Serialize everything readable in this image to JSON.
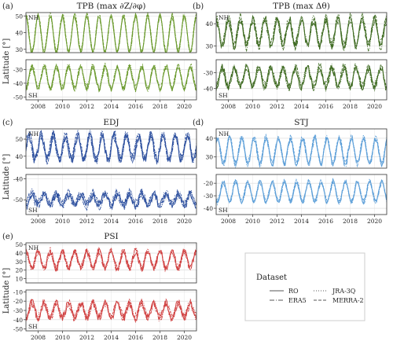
{
  "figure": {
    "ylabel": "Latitude [°]",
    "x_ticks": [
      "2008",
      "2010",
      "2012",
      "2014",
      "2016",
      "2018",
      "2020"
    ],
    "legend": {
      "title": "Dataset",
      "entries": [
        {
          "name": "RO",
          "style": "solid"
        },
        {
          "name": "JRA-3Q",
          "style": "dotted"
        },
        {
          "name": "ERA5",
          "style": "dashdot"
        },
        {
          "name": "MERRA-2",
          "style": "dashed"
        }
      ]
    }
  },
  "chart_data": [
    {
      "id": "a",
      "type": "line",
      "tag": "(a)",
      "title": "TPB (max ∂Z/∂φ)",
      "color": "#6b9a2e",
      "xlim": [
        2007,
        2021
      ],
      "nh": {
        "label": "NH",
        "ylim": [
          28,
          52
        ],
        "yticks": [
          30,
          40,
          50
        ],
        "base": 39,
        "amp": 11,
        "phase": 0.0,
        "noise": 1.2
      },
      "sh": {
        "label": "SH",
        "ylim": [
          -52,
          -23
        ],
        "yticks": [
          -50,
          -40,
          -30
        ],
        "base": -36,
        "amp": 8,
        "phase": 0.5,
        "noise": 2.0
      }
    },
    {
      "id": "b",
      "type": "line",
      "tag": "(b)",
      "title": "TPB (max Δθ)",
      "color": "#3f6b22",
      "xlim": [
        2007,
        2021
      ],
      "nh": {
        "label": "NH",
        "ylim": [
          27,
          45
        ],
        "yticks": [
          30,
          40
        ],
        "base": 36,
        "amp": 6,
        "phase": 0.0,
        "noise": 2.0
      },
      "sh": {
        "label": "SH",
        "ylim": [
          -47,
          -22
        ],
        "yticks": [
          -40,
          -30
        ],
        "base": -33,
        "amp": 6,
        "phase": 0.5,
        "noise": 2.5
      }
    },
    {
      "id": "c",
      "type": "line",
      "tag": "(c)",
      "title": "EDJ",
      "color": "#2c4f9e",
      "xlim": [
        2007,
        2021
      ],
      "nh": {
        "label": "NH",
        "ylim": [
          33,
          56
        ],
        "yticks": [
          40,
          50
        ],
        "base": 45,
        "amp": 7,
        "phase": 0.25,
        "noise": 3.0
      },
      "sh": {
        "label": "SH",
        "ylim": [
          -57,
          -38
        ],
        "yticks": [
          -50,
          -40
        ],
        "base": -50,
        "amp": 2.5,
        "phase": 0.5,
        "noise": 2.0
      }
    },
    {
      "id": "d",
      "type": "line",
      "tag": "(d)",
      "title": "STJ",
      "color": "#5b9ed8",
      "xlim": [
        2007,
        2021
      ],
      "nh": {
        "label": "NH",
        "ylim": [
          24,
          45
        ],
        "yticks": [
          30,
          40
        ],
        "base": 33,
        "amp": 7,
        "phase": 0.1,
        "noise": 1.5
      },
      "sh": {
        "label": "SH",
        "ylim": [
          -45,
          -13
        ],
        "yticks": [
          -40,
          -30,
          -20
        ],
        "base": -27,
        "amp": 8,
        "phase": 0.6,
        "noise": 1.8
      }
    },
    {
      "id": "e",
      "type": "line",
      "tag": "(e)",
      "title": "PSI",
      "color": "#d04040",
      "xlim": [
        2007,
        2021
      ],
      "nh": {
        "label": "NH",
        "ylim": [
          5,
          52
        ],
        "yticks": [
          10,
          20,
          30,
          40,
          50
        ],
        "base": 32,
        "amp": 10,
        "phase": 0.0,
        "noise": 4.0
      },
      "sh": {
        "label": "SH",
        "ylim": [
          -52,
          -8
        ],
        "yticks": [
          -50,
          -40,
          -30,
          -20,
          -10
        ],
        "base": -30,
        "amp": 8,
        "phase": 0.5,
        "noise": 4.5
      }
    }
  ]
}
